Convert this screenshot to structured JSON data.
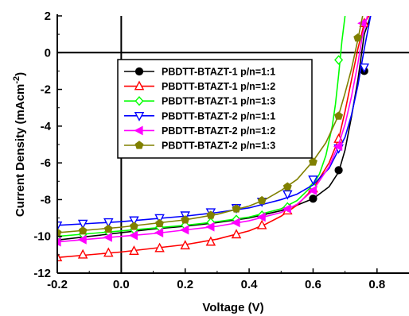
{
  "chart_data": {
    "type": "line",
    "xlabel": "Voltage (V)",
    "ylabel": "Current Density (mAcm",
    "ylabel_sup": "-2",
    "ylabel_tail": ")",
    "xlim": [
      -0.2,
      0.9
    ],
    "ylim": [
      -12,
      2
    ],
    "x_ticks": [
      -0.2,
      0.0,
      0.2,
      0.4,
      0.6,
      0.8
    ],
    "x_tick_labels": [
      "-0.2",
      "0.0",
      "0.2",
      "0.4",
      "0.6",
      "0.8"
    ],
    "y_ticks": [
      -12,
      -10,
      -8,
      -6,
      -4,
      -2,
      0,
      2
    ],
    "y_tick_labels": [
      "-12",
      "-10",
      "-8",
      "-6",
      "-4",
      "-2",
      "0",
      "2"
    ],
    "grid": false,
    "reference_lines": [
      {
        "axis": "x",
        "value": 0
      },
      {
        "axis": "y",
        "value": 0
      }
    ],
    "legend_position": "top-center",
    "series": [
      {
        "name": "PBDTT-BTAZT-1 p/n=1:1",
        "color": "#000000",
        "marker": "circle",
        "x": [
          -0.2,
          -0.1,
          0.0,
          0.1,
          0.2,
          0.3,
          0.4,
          0.5,
          0.55,
          0.6,
          0.65,
          0.68,
          0.7,
          0.72,
          0.74,
          0.76,
          0.78
        ],
        "y": [
          -10.2,
          -10.0,
          -9.8,
          -9.6,
          -9.45,
          -9.25,
          -9.0,
          -8.6,
          -8.3,
          -7.95,
          -7.3,
          -6.5,
          -5.3,
          -3.5,
          -1.5,
          1.0,
          2.0
        ],
        "marker_x": [
          -0.2,
          0.6,
          0.68,
          0.76
        ],
        "marker_y": [
          -10.2,
          -7.95,
          -6.4,
          -1.0
        ]
      },
      {
        "name": "PBDTT-BTAZT-1 p/n=1:2",
        "color": "#ff0000",
        "marker": "triangle-up",
        "x": [
          -0.2,
          -0.1,
          0.0,
          0.1,
          0.2,
          0.3,
          0.4,
          0.45,
          0.5,
          0.55,
          0.6,
          0.65,
          0.68,
          0.7,
          0.72,
          0.74,
          0.76,
          0.775
        ],
        "y": [
          -11.15,
          -11.0,
          -10.85,
          -10.65,
          -10.45,
          -10.15,
          -9.7,
          -9.35,
          -8.9,
          -8.3,
          -7.4,
          -6.0,
          -4.7,
          -3.2,
          -1.5,
          0.2,
          1.6,
          2.0
        ],
        "marker_x": [
          -0.2,
          -0.12,
          -0.04,
          0.04,
          0.12,
          0.2,
          0.28,
          0.36,
          0.44,
          0.52,
          0.6,
          0.68,
          0.76
        ],
        "marker_y": [
          -11.15,
          -11.0,
          -10.9,
          -10.8,
          -10.65,
          -10.5,
          -10.3,
          -9.9,
          -9.4,
          -8.6,
          -7.4,
          -4.7,
          1.6
        ]
      },
      {
        "name": "PBDTT-BTAZT-1 p/n=1:3",
        "color": "#00ff00",
        "marker": "diamond",
        "x": [
          -0.2,
          -0.1,
          0.0,
          0.1,
          0.2,
          0.3,
          0.4,
          0.5,
          0.55,
          0.6,
          0.62,
          0.64,
          0.66,
          0.67,
          0.68,
          0.69,
          0.7
        ],
        "y": [
          -10.0,
          -9.85,
          -9.7,
          -9.55,
          -9.4,
          -9.2,
          -8.95,
          -8.5,
          -8.05,
          -7.2,
          -6.6,
          -5.6,
          -4.0,
          -2.8,
          -1.2,
          0.6,
          2.0
        ],
        "marker_x": [
          -0.2,
          -0.12,
          -0.04,
          0.04,
          0.12,
          0.2,
          0.28,
          0.36,
          0.44,
          0.52,
          0.6,
          0.68
        ],
        "marker_y": [
          -10.0,
          -9.88,
          -9.76,
          -9.64,
          -9.5,
          -9.4,
          -9.24,
          -9.08,
          -8.85,
          -8.4,
          -7.3,
          -0.4
        ]
      },
      {
        "name": "PBDTT-BTAZT-2 p/n=1:1",
        "color": "#0000ff",
        "marker": "triangle-down",
        "x": [
          -0.2,
          -0.1,
          0.0,
          0.1,
          0.2,
          0.3,
          0.4,
          0.5,
          0.55,
          0.6,
          0.65,
          0.7,
          0.72,
          0.74,
          0.76,
          0.78
        ],
        "y": [
          -9.4,
          -9.3,
          -9.2,
          -9.05,
          -8.9,
          -8.7,
          -8.45,
          -8.0,
          -7.7,
          -7.2,
          -6.3,
          -4.6,
          -3.4,
          -1.8,
          0.2,
          2.0
        ],
        "marker_x": [
          -0.2,
          -0.12,
          -0.04,
          0.04,
          0.12,
          0.2,
          0.28,
          0.36,
          0.44,
          0.52,
          0.6,
          0.68,
          0.76
        ],
        "marker_y": [
          -9.4,
          -9.3,
          -9.22,
          -9.12,
          -9.0,
          -8.85,
          -8.68,
          -8.45,
          -8.1,
          -7.7,
          -6.9,
          -5.2,
          -0.8
        ]
      },
      {
        "name": "PBDTT-BTAZT-2 p/n=1:2",
        "color": "#ff00ff",
        "marker": "triangle-left",
        "x": [
          -0.2,
          -0.1,
          0.0,
          0.1,
          0.2,
          0.3,
          0.4,
          0.5,
          0.55,
          0.6,
          0.65,
          0.68,
          0.7,
          0.72,
          0.74,
          0.755,
          0.77
        ],
        "y": [
          -10.3,
          -10.15,
          -10.0,
          -9.85,
          -9.65,
          -9.45,
          -9.15,
          -8.7,
          -8.25,
          -7.5,
          -6.2,
          -5.0,
          -3.9,
          -2.4,
          -0.6,
          1.0,
          2.0
        ],
        "marker_x": [
          -0.2,
          -0.12,
          -0.04,
          0.04,
          0.12,
          0.2,
          0.28,
          0.36,
          0.44,
          0.52,
          0.6,
          0.68,
          0.755
        ],
        "marker_y": [
          -10.3,
          -10.18,
          -10.05,
          -9.95,
          -9.8,
          -9.65,
          -9.48,
          -9.25,
          -8.95,
          -8.5,
          -7.5,
          -5.1,
          1.6
        ]
      },
      {
        "name": "PBDTT-BTAZT-2 p/n=1:3",
        "color": "#808000",
        "marker": "pentagon",
        "x": [
          -0.2,
          -0.1,
          0.0,
          0.1,
          0.2,
          0.3,
          0.4,
          0.45,
          0.5,
          0.55,
          0.6,
          0.64,
          0.68,
          0.7,
          0.72,
          0.74,
          0.755
        ],
        "y": [
          -9.8,
          -9.65,
          -9.5,
          -9.3,
          -9.1,
          -8.8,
          -8.35,
          -8.0,
          -7.5,
          -6.9,
          -5.9,
          -4.9,
          -3.4,
          -2.2,
          -0.9,
          0.7,
          2.0
        ],
        "marker_x": [
          -0.2,
          -0.12,
          -0.04,
          0.04,
          0.12,
          0.2,
          0.28,
          0.36,
          0.44,
          0.52,
          0.6,
          0.68,
          0.74
        ],
        "marker_y": [
          -9.8,
          -9.7,
          -9.6,
          -9.45,
          -9.3,
          -9.1,
          -8.85,
          -8.5,
          -8.05,
          -7.3,
          -5.95,
          -3.45,
          0.8
        ]
      }
    ]
  }
}
